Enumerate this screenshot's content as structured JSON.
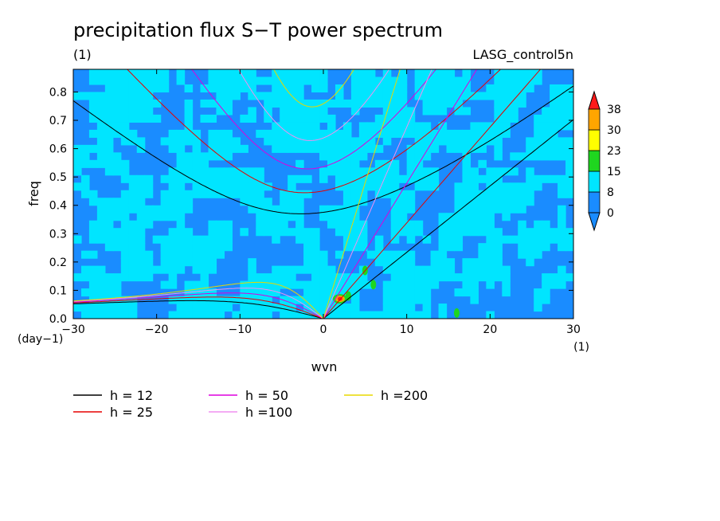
{
  "chart_data": {
    "type": "heatmap",
    "title": "precipitation flux S−T power spectrum",
    "subtitle_left": "(1)",
    "subtitle_right": "LASG_control5n",
    "xlabel": "wvn",
    "ylabel": "freq",
    "x_unit": "(1)",
    "y_unit": "(day−1)",
    "xlim": [
      -30,
      30
    ],
    "ylim": [
      0,
      0.88
    ],
    "xticks": [
      -30,
      -20,
      -10,
      0,
      10,
      20,
      30
    ],
    "xtick_labels": [
      "−30",
      "−20",
      "−10",
      "0",
      "10",
      "20",
      "30"
    ],
    "yticks": [
      0.0,
      0.1,
      0.2,
      0.3,
      0.4,
      0.5,
      0.6,
      0.7,
      0.8
    ],
    "ytick_labels": [
      "0.0",
      "0.1",
      "0.2",
      "0.3",
      "0.4",
      "0.5",
      "0.6",
      "0.7",
      "0.8"
    ],
    "colorbar": {
      "levels": [
        "0",
        "8",
        "15",
        "23",
        "30",
        "38"
      ],
      "colors": [
        "#1a8cff",
        "#00e5ff",
        "#1fd61f",
        "#ffff00",
        "#ffa500",
        "#ff1a1a"
      ],
      "under_color": "#1a8cff",
      "over_color": "#ff1a1a"
    },
    "dispersion_curves": [
      {
        "label": "h = 12",
        "h": 12,
        "color": "#000000"
      },
      {
        "label": "h = 25",
        "h": 25,
        "color": "#e60000"
      },
      {
        "label": "h = 50",
        "h": 50,
        "color": "#dd00dd"
      },
      {
        "label": "h =100",
        "h": 100,
        "color": "#f090f0"
      },
      {
        "label": "h =200",
        "h": 200,
        "color": "#e8d800"
      }
    ],
    "field_levels_present": {
      "background": "0",
      "dominant": "8",
      "peaks": [
        {
          "wvn": 2,
          "freq": 0.07,
          "level": "38"
        },
        {
          "wvn": 3,
          "freq": 0.08,
          "level": "15"
        },
        {
          "wvn": 5,
          "freq": 0.17,
          "level": "15"
        },
        {
          "wvn": 6,
          "freq": 0.12,
          "level": "15"
        },
        {
          "wvn": 16,
          "freq": 0.02,
          "level": "15"
        }
      ]
    }
  }
}
